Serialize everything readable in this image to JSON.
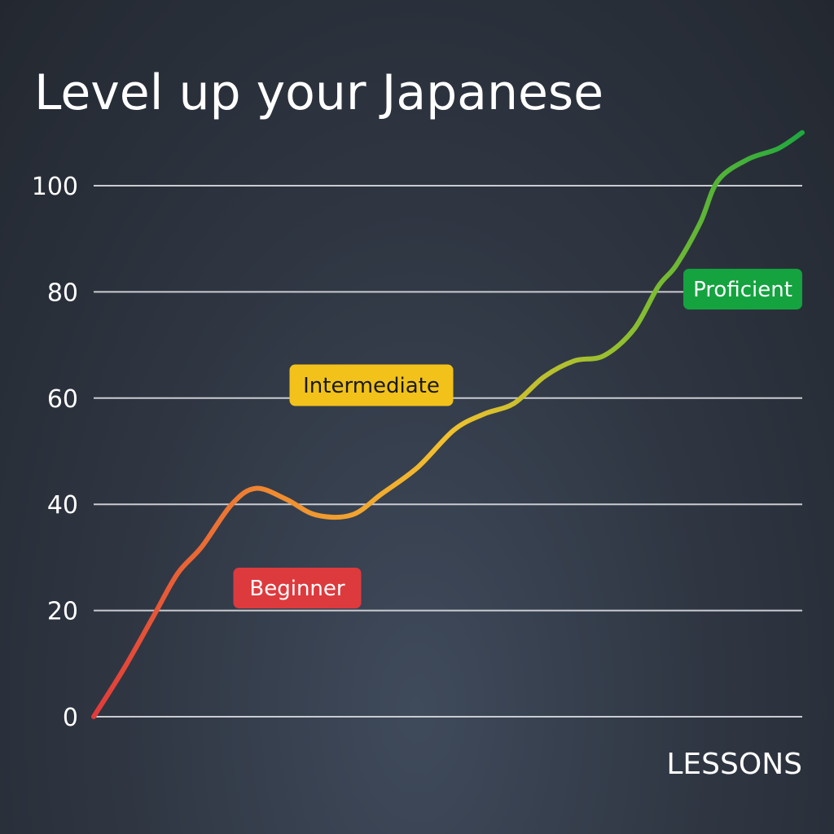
{
  "chart_data": {
    "type": "line",
    "title": "Level up your Japanese",
    "xlabel": "LESSONS",
    "ylabel": "",
    "ylim": [
      0,
      100
    ],
    "yticks": [
      0,
      20,
      40,
      60,
      80,
      100
    ],
    "grid": true,
    "series": [
      {
        "points": [
          [
            0,
            0
          ],
          [
            5,
            9
          ],
          [
            10,
            19
          ],
          [
            14,
            27
          ],
          [
            18,
            32
          ],
          [
            23,
            40
          ],
          [
            27,
            43
          ],
          [
            32,
            41
          ],
          [
            37,
            38
          ],
          [
            43,
            38
          ],
          [
            48,
            42
          ],
          [
            54,
            47
          ],
          [
            60,
            54
          ],
          [
            65,
            57
          ],
          [
            70,
            59
          ],
          [
            75,
            64
          ],
          [
            80,
            67
          ],
          [
            85,
            68
          ],
          [
            90,
            73
          ],
          [
            94,
            81
          ],
          [
            97,
            85
          ],
          [
            101,
            93
          ],
          [
            104,
            101
          ],
          [
            109,
            105
          ],
          [
            114,
            107
          ],
          [
            118,
            110
          ]
        ]
      }
    ],
    "gradient_colors": [
      "#e23a3a",
      "#f08a30",
      "#f2c12e",
      "#8fbf2f",
      "#1fa83f"
    ],
    "annotations": [
      {
        "label": "Beginner",
        "color": "#dd3a3e",
        "text_color": "#ffffff"
      },
      {
        "label": "Intermediate",
        "color": "#f2c21b",
        "text_color": "#1a1a1a"
      },
      {
        "label": "Proficient",
        "color": "#14a33f",
        "text_color": "#ffffff"
      }
    ]
  }
}
